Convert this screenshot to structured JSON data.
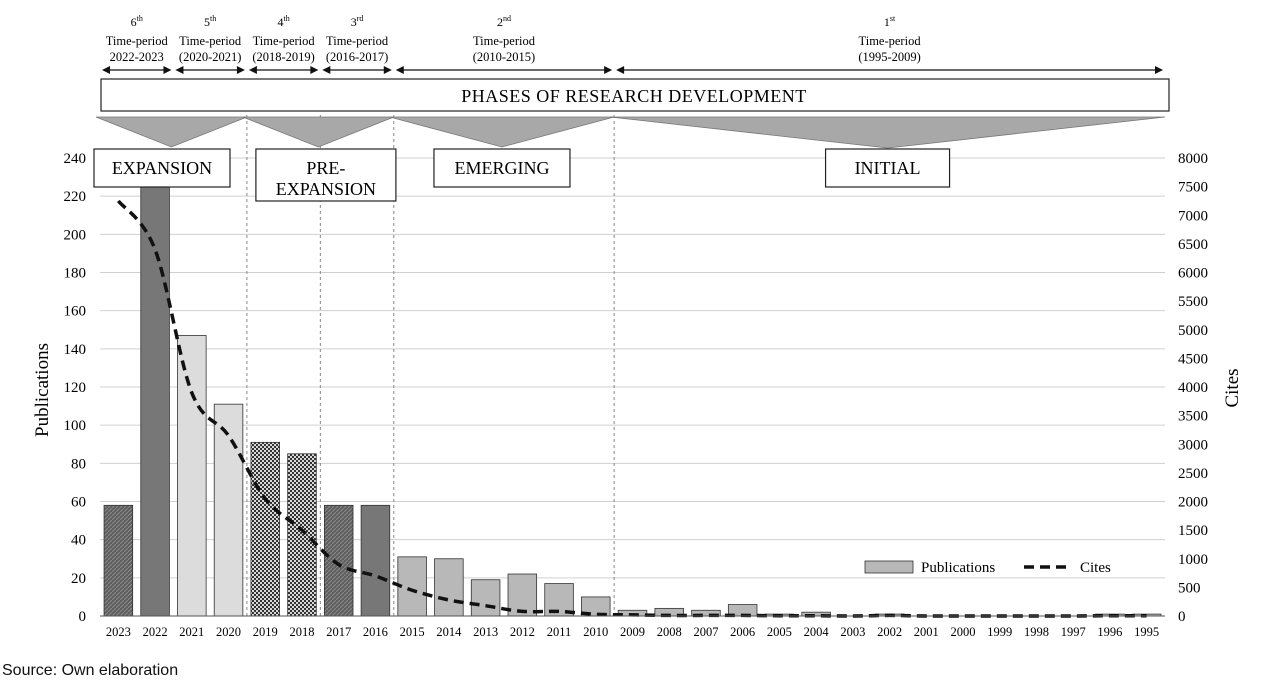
{
  "chart_data": {
    "type": "bar",
    "categories": [
      "2023",
      "2022",
      "2021",
      "2020",
      "2019",
      "2018",
      "2017",
      "2016",
      "2015",
      "2014",
      "2013",
      "2012",
      "2011",
      "2010",
      "2009",
      "2008",
      "2007",
      "2006",
      "2005",
      "2004",
      "2003",
      "2002",
      "2001",
      "2000",
      "1999",
      "1998",
      "1997",
      "1996",
      "1995"
    ],
    "series": [
      {
        "name": "Publications",
        "axis": "left",
        "kind": "bar",
        "values": [
          58,
          225,
          147,
          111,
          91,
          85,
          58,
          58,
          31,
          30,
          19,
          22,
          17,
          10,
          3,
          4,
          3,
          6,
          1,
          2,
          0,
          1,
          0,
          0,
          0,
          0,
          0,
          1,
          1
        ],
        "fills": [
          "dark-hatch",
          "dark",
          "light",
          "light",
          "check",
          "check",
          "dark-hatch",
          "dark",
          "mid",
          "mid",
          "mid",
          "mid",
          "mid",
          "mid",
          "mid",
          "mid",
          "mid",
          "mid",
          "mid",
          "mid",
          "mid",
          "mid",
          "mid",
          "mid",
          "mid",
          "mid",
          "mid",
          "mid",
          "mid"
        ]
      },
      {
        "name": "Cites",
        "axis": "right",
        "kind": "line",
        "style": "dashed",
        "values": [
          7250,
          6400,
          3900,
          3150,
          2050,
          1500,
          900,
          700,
          450,
          280,
          180,
          80,
          80,
          30,
          20,
          10,
          10,
          10,
          5,
          5,
          0,
          10,
          0,
          0,
          0,
          0,
          0,
          5,
          5
        ]
      }
    ],
    "ylabel": "Publications",
    "y2label": "Cites",
    "ylim": [
      0,
      240
    ],
    "y2lim": [
      0,
      8000
    ],
    "yticks": [
      0,
      20,
      40,
      60,
      80,
      100,
      120,
      140,
      160,
      180,
      200,
      220,
      240
    ],
    "y2ticks": [
      0,
      500,
      1000,
      1500,
      2000,
      2500,
      3000,
      3500,
      4000,
      4500,
      5000,
      5500,
      6000,
      6500,
      7000,
      7500,
      8000
    ],
    "grid": true,
    "legend_position": "bottom-right",
    "legend": [
      {
        "label": "Publications",
        "kind": "bar"
      },
      {
        "label": "Cites",
        "kind": "dashed-line"
      }
    ],
    "banner": "PHASES OF RESEARCH DEVELOPMENT",
    "time_periods": [
      {
        "ord": "6",
        "sup": "th",
        "label": "Time-period",
        "range": "2022-2023",
        "from": "2023",
        "to": "2022"
      },
      {
        "ord": "5",
        "sup": "th",
        "label": "Time-period",
        "range": "(2020-2021)",
        "from": "2021",
        "to": "2020"
      },
      {
        "ord": "4",
        "sup": "th",
        "label": "Time-period",
        "range": "(2018-2019)",
        "from": "2019",
        "to": "2018"
      },
      {
        "ord": "3",
        "sup": "rd",
        "label": "Time-period",
        "range": "(2016-2017)",
        "from": "2017",
        "to": "2016"
      },
      {
        "ord": "2",
        "sup": "nd",
        "label": "Time-period",
        "range": "(2010-2015)",
        "from": "2015",
        "to": "2010"
      },
      {
        "ord": "1",
        "sup": "st",
        "label": "Time-period",
        "range": "(1995-2009)",
        "from": "2009",
        "to": "1995"
      }
    ],
    "phases": [
      {
        "lines": [
          "EXPANSION"
        ],
        "from": "2023",
        "to": "2020"
      },
      {
        "lines": [
          "PRE-",
          "EXPANSION"
        ],
        "from": "2019",
        "to": "2016"
      },
      {
        "lines": [
          "EMERGING"
        ],
        "from": "2015",
        "to": "2010"
      },
      {
        "lines": [
          "INITIAL"
        ],
        "from": "2009",
        "to": "1995"
      }
    ]
  },
  "source_note": "Source: Own elaboration"
}
